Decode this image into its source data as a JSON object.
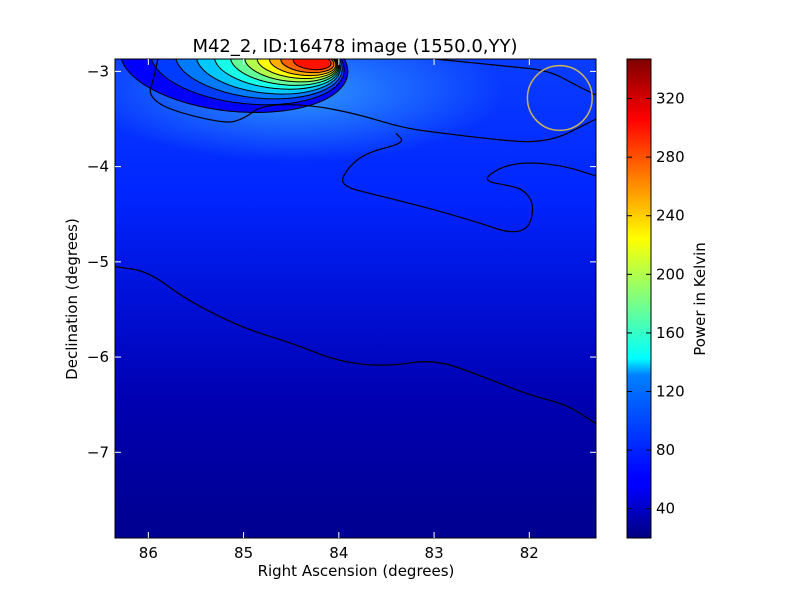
{
  "chart_data": {
    "type": "heatmap",
    "title": "M42_2, ID:16478 image (1550.0,YY)",
    "xlabel": "Right Ascension (degrees)",
    "ylabel": "Declination (degrees)",
    "colorbar_label": "Power in Kelvin",
    "colormap": "jet",
    "xlim": [
      86.35,
      81.3
    ],
    "ylim": [
      -7.9,
      -2.87
    ],
    "x_ticks": [
      86,
      85,
      84,
      83,
      82
    ],
    "y_ticks": [
      -3,
      -4,
      -5,
      -6,
      -7
    ],
    "x_tick_labels": [
      "86",
      "85",
      "84",
      "83",
      "82"
    ],
    "y_tick_labels": [
      "−3",
      "−4",
      "−5",
      "−6",
      "−7"
    ],
    "color_range": [
      20,
      347
    ],
    "colorbar_ticks": [
      40,
      80,
      120,
      160,
      200,
      240,
      280,
      320
    ],
    "colorbar_tick_labels": [
      "40",
      "80",
      "120",
      "160",
      "200",
      "240",
      "280",
      "320"
    ],
    "peak": {
      "ra": 84.2,
      "dec": -2.9,
      "power": 340
    },
    "marker_circle": {
      "ra": 81.68,
      "dec": -3.28,
      "radius_deg": 0.34,
      "color": "#c8b45a"
    },
    "contour_paths": [
      [
        [
          86.35,
          -5.05
        ],
        [
          86.0,
          -5.1
        ],
        [
          85.6,
          -5.4
        ],
        [
          85.0,
          -5.7
        ],
        [
          84.5,
          -5.85
        ],
        [
          84.0,
          -6.05
        ],
        [
          83.5,
          -6.1
        ],
        [
          83.0,
          -6.02
        ],
        [
          82.5,
          -6.2
        ],
        [
          82.0,
          -6.4
        ],
        [
          81.6,
          -6.5
        ],
        [
          81.3,
          -6.7
        ]
      ],
      [
        [
          85.9,
          -2.87
        ],
        [
          85.95,
          -3.1
        ],
        [
          86.0,
          -3.25
        ],
        [
          85.8,
          -3.4
        ],
        [
          85.2,
          -3.55
        ],
        [
          85.0,
          -3.5
        ],
        [
          84.8,
          -3.35
        ],
        [
          84.3,
          -3.35
        ],
        [
          83.8,
          -3.45
        ],
        [
          83.3,
          -3.6
        ],
        [
          82.9,
          -3.65
        ],
        [
          82.5,
          -3.7
        ],
        [
          82.0,
          -3.75
        ],
        [
          81.7,
          -3.7
        ],
        [
          81.5,
          -3.6
        ],
        [
          81.3,
          -3.5
        ]
      ],
      [
        [
          83.4,
          -3.65
        ],
        [
          83.3,
          -3.75
        ],
        [
          83.7,
          -3.85
        ],
        [
          83.9,
          -4.0
        ],
        [
          84.0,
          -4.2
        ],
        [
          83.6,
          -4.3
        ],
        [
          83.0,
          -4.45
        ],
        [
          82.5,
          -4.6
        ],
        [
          82.2,
          -4.7
        ],
        [
          82.0,
          -4.65
        ],
        [
          81.95,
          -4.4
        ],
        [
          82.05,
          -4.25
        ],
        [
          82.2,
          -4.2
        ],
        [
          82.5,
          -4.15
        ],
        [
          82.3,
          -4.0
        ],
        [
          82.0,
          -3.95
        ],
        [
          81.6,
          -4.0
        ],
        [
          81.3,
          -4.1
        ]
      ],
      [
        [
          81.3,
          -3.25
        ],
        [
          81.5,
          -3.15
        ],
        [
          81.8,
          -2.99
        ],
        [
          82.2,
          -2.95
        ],
        [
          82.7,
          -2.9
        ],
        [
          83.0,
          -2.87
        ]
      ]
    ],
    "lobe_contours": [
      {
        "level": 60,
        "rx_deg": 1.2,
        "ry_deg": 0.52,
        "dx_deg": 0.9
      },
      {
        "level": 80,
        "rx_deg": 1.02,
        "ry_deg": 0.44,
        "dx_deg": 0.76
      },
      {
        "level": 100,
        "rx_deg": 0.88,
        "ry_deg": 0.38,
        "dx_deg": 0.64
      },
      {
        "level": 125,
        "rx_deg": 0.76,
        "ry_deg": 0.33,
        "dx_deg": 0.54
      },
      {
        "level": 150,
        "rx_deg": 0.66,
        "ry_deg": 0.28,
        "dx_deg": 0.45
      },
      {
        "level": 175,
        "rx_deg": 0.57,
        "ry_deg": 0.24,
        "dx_deg": 0.37
      },
      {
        "level": 200,
        "rx_deg": 0.49,
        "ry_deg": 0.205,
        "dx_deg": 0.3
      },
      {
        "level": 225,
        "rx_deg": 0.42,
        "ry_deg": 0.17,
        "dx_deg": 0.24
      },
      {
        "level": 250,
        "rx_deg": 0.35,
        "ry_deg": 0.14,
        "dx_deg": 0.18
      },
      {
        "level": 275,
        "rx_deg": 0.28,
        "ry_deg": 0.11,
        "dx_deg": 0.13
      },
      {
        "level": 300,
        "rx_deg": 0.2,
        "ry_deg": 0.08,
        "dx_deg": 0.08
      }
    ]
  }
}
